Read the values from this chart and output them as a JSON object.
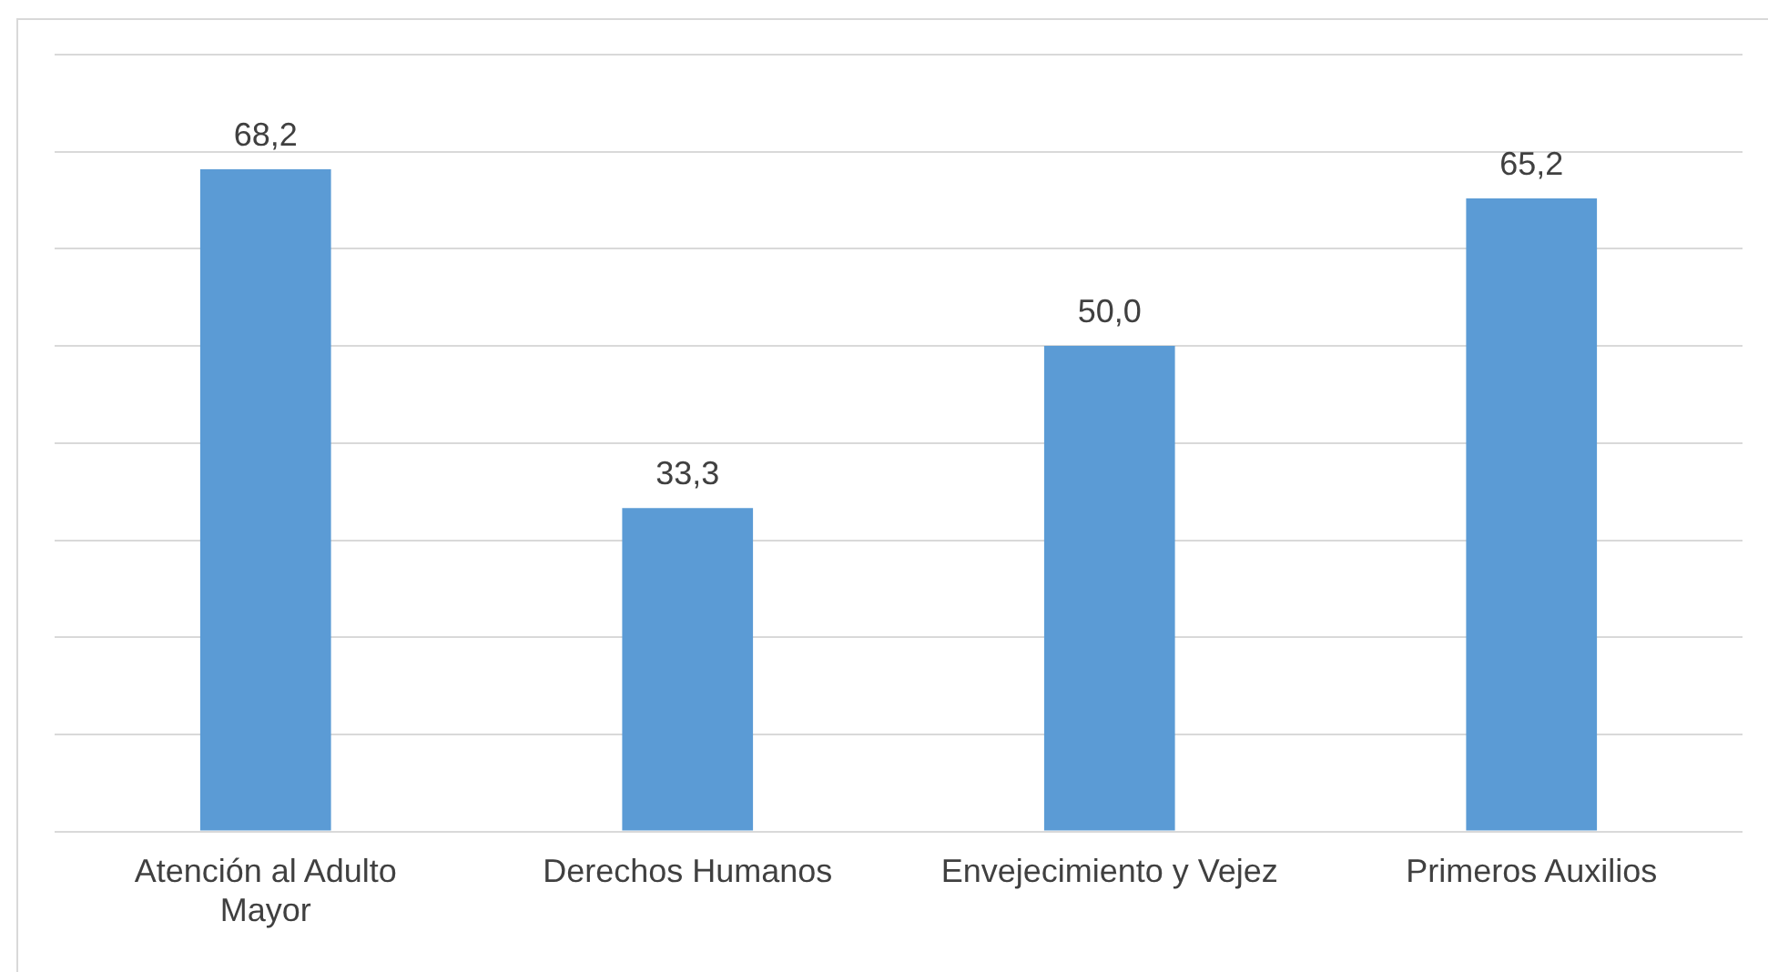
{
  "chart_data": {
    "type": "bar",
    "categories": [
      "Atención al Adulto Mayor",
      "Derechos Humanos",
      "Envejecimiento y Vejez",
      "Primeros Auxilios"
    ],
    "values": [
      68.2,
      33.3,
      50.0,
      65.2
    ],
    "value_labels": [
      "68,2",
      "33,3",
      "50,0",
      "65,2"
    ],
    "color": "#5b9bd5",
    "ylim": [
      0,
      80
    ],
    "yticks": [
      {
        "value": 0,
        "label": null
      },
      {
        "value": 10,
        "label": null
      },
      {
        "value": 20,
        "label": null
      },
      {
        "value": 30,
        "label": null
      },
      {
        "value": 40,
        "label": null
      },
      {
        "value": 50,
        "label": null
      },
      {
        "value": 60,
        "label": null
      },
      {
        "value": 70,
        "label": null
      },
      {
        "value": 80,
        "label": null
      }
    ],
    "tick_labels": "x",
    "grid": "y",
    "legend": false
  }
}
